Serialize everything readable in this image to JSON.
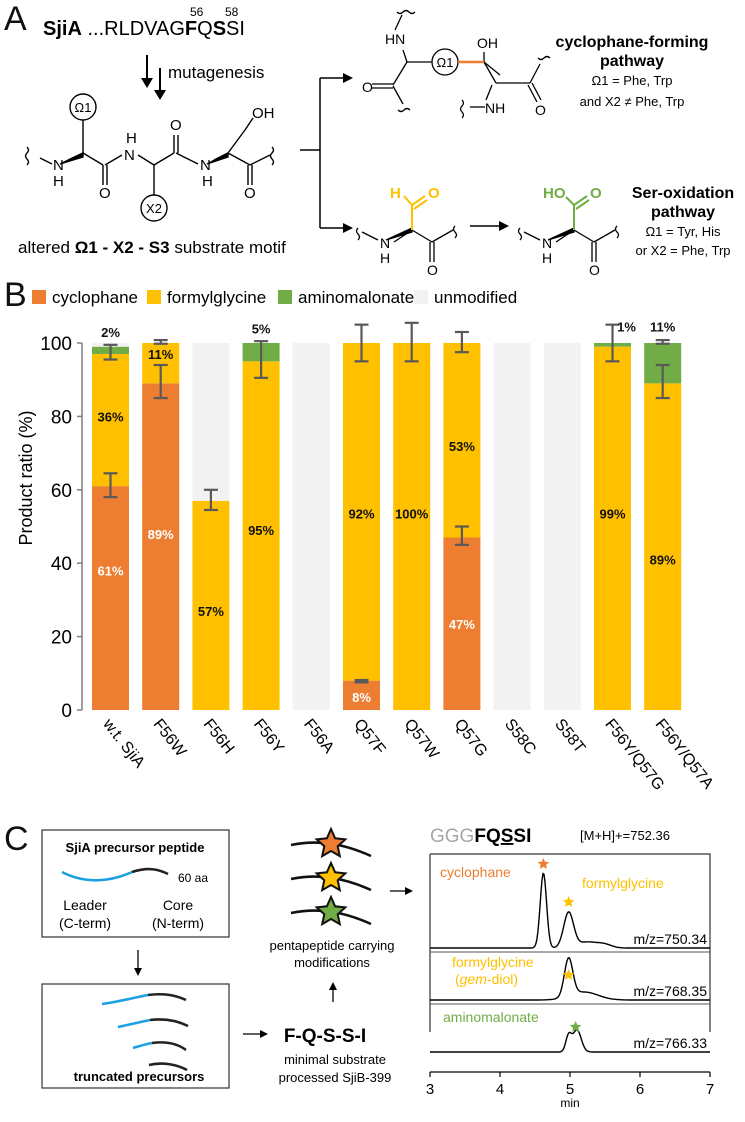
{
  "colors": {
    "cyclophane": "#ED7D31",
    "formylglycine": "#FFC000",
    "aminomalonate": "#70AD47",
    "unmodified": "#F2F2F2",
    "error_bar": "#595959",
    "leader": "#1BA1E2",
    "gray_text": "#A6A6A6"
  },
  "panelA": {
    "letter": "A",
    "seq_name": "SjiA",
    "seq_pre": " ...RLDVAG",
    "seq_F": "F",
    "seq_Q": "Q",
    "seq_S": "S",
    "seq_post": "SI",
    "pos56": "56",
    "pos58": "58",
    "mutagenesis": "mutagenesis",
    "omega1": "Ω1",
    "x2": "X2",
    "atoms": {
      "H": "H",
      "N": "N",
      "O": "O",
      "OH": "OH",
      "HN": "HN",
      "NH": "NH",
      "HO": "HO"
    },
    "motif_pre": "altered ",
    "motif_bold1": "Ω1 - X2 - S3",
    "motif_post": " substrate motif",
    "pathway1_title1": "cyclophane-forming",
    "pathway1_title2": "pathway",
    "pathway1_line1": "Ω1 = Phe, Trp",
    "pathway1_line2": "and X2 ≠ Phe, Trp",
    "pathway2_title1": "Ser-oxidation",
    "pathway2_title2": "pathway",
    "pathway2_line1": "Ω1 = Tyr, His",
    "pathway2_line2": "or X2 = Phe, Trp"
  },
  "panelB": {
    "letter": "B"
  },
  "chart_data": {
    "type": "bar",
    "stacked": true,
    "ylabel": "Product ratio (%)",
    "xlabel": "",
    "ylim": [
      0,
      100
    ],
    "yticks": [
      0,
      20,
      40,
      60,
      80,
      100
    ],
    "legend": [
      "cyclophane",
      "formylglycine",
      "aminomalonate",
      "unmodified"
    ],
    "legend_position": "top",
    "categories": [
      "w.t. SjiA",
      "F56W",
      "F56H",
      "F56Y",
      "F56A",
      "Q57F",
      "Q57W",
      "Q57G",
      "S58C",
      "S58T",
      "F56Y/Q57G",
      "F56Y/Q57A"
    ],
    "series": [
      {
        "name": "cyclophane",
        "values": [
          61,
          89,
          0,
          0,
          0,
          8,
          0,
          47,
          0,
          0,
          0,
          0
        ]
      },
      {
        "name": "formylglycine",
        "values": [
          36,
          11,
          57,
          95,
          0,
          92,
          100,
          53,
          0,
          0,
          99,
          89
        ]
      },
      {
        "name": "aminomalonate",
        "values": [
          2,
          0,
          0,
          5,
          0,
          0,
          0,
          0,
          0,
          0,
          1,
          11
        ]
      },
      {
        "name": "unmodified",
        "values": [
          1,
          0,
          43,
          0,
          100,
          0,
          0,
          0,
          100,
          100,
          0,
          0
        ]
      }
    ],
    "error_bars": [
      {
        "category": "w.t. SjiA",
        "at": 61,
        "low": 58,
        "high": 64.5
      },
      {
        "category": "w.t. SjiA",
        "at": 97,
        "low": 95.5,
        "high": 99.5
      },
      {
        "category": "F56W",
        "at": 89,
        "low": 85,
        "high": 94
      },
      {
        "category": "F56W",
        "at": 100,
        "low": 99.8,
        "high": 100.8
      },
      {
        "category": "F56H",
        "at": 57,
        "low": 54.5,
        "high": 60
      },
      {
        "category": "F56Y",
        "at": 95,
        "low": 90.5,
        "high": 100.5
      },
      {
        "category": "Q57F",
        "at": 8,
        "low": 7.5,
        "high": 8.2
      },
      {
        "category": "Q57F",
        "at": 100,
        "low": 95,
        "high": 105
      },
      {
        "category": "Q57W",
        "at": 100,
        "low": 95,
        "high": 105.5
      },
      {
        "category": "Q57G",
        "at": 47,
        "low": 45,
        "high": 50
      },
      {
        "category": "Q57G",
        "at": 100,
        "low": 97.5,
        "high": 103
      },
      {
        "category": "F56Y/Q57G",
        "at": 99,
        "low": 95,
        "high": 105
      },
      {
        "category": "F56Y/Q57A",
        "at": 89,
        "low": 85,
        "high": 94
      },
      {
        "category": "F56Y/Q57A",
        "at": 100,
        "low": 99.8,
        "high": 100.8
      }
    ],
    "data_labels": [
      {
        "category": "w.t. SjiA",
        "series": "cyclophane",
        "text": "61%",
        "color": "white",
        "y": 38
      },
      {
        "category": "w.t. SjiA",
        "series": "formylglycine",
        "text": "36%",
        "color": "black",
        "y": 80
      },
      {
        "category": "w.t. SjiA",
        "series": "aminomalonate",
        "text": "2%",
        "color": "black",
        "y": 103
      },
      {
        "category": "F56W",
        "series": "cyclophane",
        "text": "89%",
        "color": "white",
        "y": 48
      },
      {
        "category": "F56W",
        "series": "formylglycine",
        "text": "11%",
        "color": "black",
        "y": 97
      },
      {
        "category": "F56H",
        "series": "formylglycine",
        "text": "57%",
        "color": "black",
        "y": 27
      },
      {
        "category": "F56Y",
        "series": "formylglycine",
        "text": "95%",
        "color": "black",
        "y": 49
      },
      {
        "category": "F56Y",
        "series": "aminomalonate",
        "text": "5%",
        "color": "black",
        "y": 104
      },
      {
        "category": "Q57F",
        "series": "cyclophane",
        "text": "8%",
        "color": "white",
        "y": 3.5
      },
      {
        "category": "Q57F",
        "series": "formylglycine",
        "text": "92%",
        "color": "black",
        "y": 53.5
      },
      {
        "category": "Q57W",
        "series": "formylglycine",
        "text": "100%",
        "color": "black",
        "y": 53.5
      },
      {
        "category": "Q57G",
        "series": "cyclophane",
        "text": "47%",
        "color": "white",
        "y": 23.5
      },
      {
        "category": "Q57G",
        "series": "formylglycine",
        "text": "53%",
        "color": "black",
        "y": 72
      },
      {
        "category": "F56Y/Q57G",
        "series": "formylglycine",
        "text": "99%",
        "color": "black",
        "y": 53.5
      },
      {
        "category": "F56Y/Q57G",
        "series": "aminomalonate",
        "text": "1%",
        "color": "black",
        "y": 104.5
      },
      {
        "category": "F56Y/Q57A",
        "series": "formylglycine",
        "text": "89%",
        "color": "black",
        "y": 41
      },
      {
        "category": "F56Y/Q57A",
        "series": "aminomalonate",
        "text": "11%",
        "color": "black",
        "y": 104.5
      }
    ]
  },
  "panelC": {
    "letter": "C",
    "box1_title": "SjiA precursor peptide",
    "box1_length": "60 aa",
    "box1_leader": "Leader",
    "box1_leader_term": "(C-term)",
    "box1_core": "Core",
    "box1_core_term": "(N-term)",
    "box2_title": "truncated precursors",
    "minimal_seq": "F-Q-S-S-I",
    "minimal_line1": "minimal substrate",
    "minimal_line2": "processed SjiB-399",
    "penta_line1": "pentapeptide carrying",
    "penta_line2": "modifications",
    "lcms_seq_gray": "GGG",
    "lcms_seq_F": "F",
    "lcms_seq_Q": "Q",
    "lcms_seq_S1": "S",
    "lcms_seq_S2": "S",
    "lcms_seq_I": "I",
    "lcms_mass": "[M+H]+=752.36",
    "traces": [
      {
        "label": "cyclophane",
        "label2": "formylglycine",
        "mz": "m/z=750.34"
      },
      {
        "label": "formylglycine",
        "label_italic": "gem",
        "label_rest": "-diol)",
        "label_open": "(",
        "mz": "m/z=768.35"
      },
      {
        "label": "aminomalonate",
        "mz": "m/z=766.33"
      }
    ],
    "xticks": [
      "3",
      "4",
      "5",
      "6",
      "7"
    ],
    "xlabel": "min"
  }
}
